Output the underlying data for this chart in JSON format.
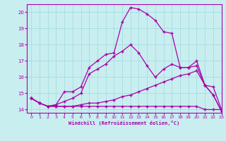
{
  "xlabel": "Windchill (Refroidissement éolien,°C)",
  "ylabel": "",
  "bg_color": "#c8eef0",
  "line_color": "#aa00aa",
  "xlim": [
    -0.5,
    23
  ],
  "ylim": [
    13.8,
    20.5
  ],
  "yticks": [
    14,
    15,
    16,
    17,
    18,
    19,
    20
  ],
  "xticks": [
    0,
    1,
    2,
    3,
    4,
    5,
    6,
    7,
    8,
    9,
    10,
    11,
    12,
    13,
    14,
    15,
    16,
    17,
    18,
    19,
    20,
    21,
    22,
    23
  ],
  "line1_x": [
    0,
    1,
    2,
    3,
    4,
    5,
    6,
    7,
    8,
    9,
    10,
    11,
    12,
    13,
    14,
    15,
    16,
    17,
    18,
    19,
    20,
    21,
    22,
    23
  ],
  "line1_y": [
    14.7,
    14.4,
    14.2,
    14.3,
    15.1,
    15.1,
    15.4,
    16.6,
    17.0,
    17.4,
    17.5,
    19.4,
    20.3,
    20.2,
    19.9,
    19.5,
    18.8,
    18.7,
    16.6,
    16.6,
    17.0,
    15.5,
    14.9,
    13.9
  ],
  "line2_x": [
    0,
    1,
    2,
    3,
    4,
    5,
    6,
    7,
    8,
    9,
    10,
    11,
    12,
    13,
    14,
    15,
    16,
    17,
    18,
    19,
    20,
    21,
    22,
    23
  ],
  "line2_y": [
    14.7,
    14.4,
    14.2,
    14.3,
    14.5,
    14.7,
    15.0,
    16.2,
    16.5,
    16.8,
    17.3,
    17.6,
    18.0,
    17.5,
    16.7,
    16.0,
    16.5,
    16.8,
    16.6,
    16.6,
    16.7,
    15.5,
    14.9,
    13.9
  ],
  "line3_x": [
    0,
    1,
    2,
    3,
    4,
    5,
    6,
    7,
    8,
    9,
    10,
    11,
    12,
    13,
    14,
    15,
    16,
    17,
    18,
    19,
    20,
    21,
    22,
    23
  ],
  "line3_y": [
    14.7,
    14.4,
    14.2,
    14.2,
    14.2,
    14.2,
    14.3,
    14.4,
    14.4,
    14.5,
    14.6,
    14.8,
    14.9,
    15.1,
    15.3,
    15.5,
    15.7,
    15.9,
    16.1,
    16.2,
    16.4,
    15.5,
    15.4,
    14.0
  ],
  "line4_x": [
    0,
    1,
    2,
    3,
    4,
    5,
    6,
    7,
    8,
    9,
    10,
    11,
    12,
    13,
    14,
    15,
    16,
    17,
    18,
    19,
    20,
    21,
    22,
    23
  ],
  "line4_y": [
    14.7,
    14.4,
    14.2,
    14.2,
    14.2,
    14.2,
    14.2,
    14.2,
    14.2,
    14.2,
    14.2,
    14.2,
    14.2,
    14.2,
    14.2,
    14.2,
    14.2,
    14.2,
    14.2,
    14.2,
    14.2,
    14.0,
    14.0,
    14.0
  ]
}
